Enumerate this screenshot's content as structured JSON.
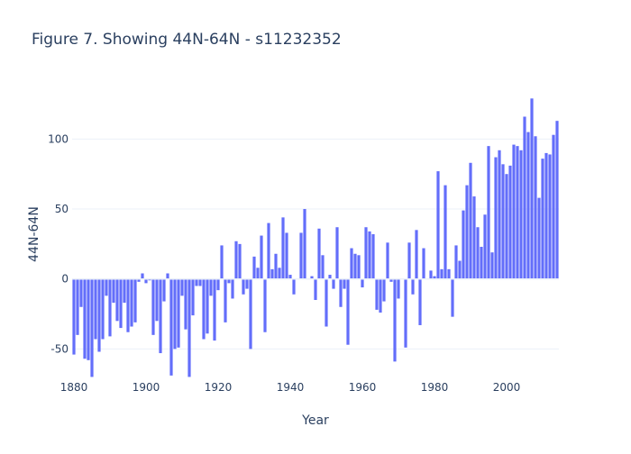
{
  "chart_data": {
    "type": "bar",
    "title": "Figure 7. Showing 44N-64N - s11232352",
    "xlabel": "Year",
    "ylabel": "44N-64N",
    "x_start": 1880,
    "x_end": 2014,
    "xticks": [
      1880,
      1900,
      1920,
      1940,
      1960,
      1980,
      2000
    ],
    "yticks": [
      -50,
      0,
      50,
      100
    ],
    "ylim": [
      -71,
      135
    ],
    "grid": true,
    "bar_color": "#636efa",
    "values": [
      -54,
      -40,
      -20,
      -57,
      -58,
      -70,
      -43,
      -52,
      -43,
      -12,
      -41,
      -17,
      -30,
      -35,
      -17,
      -38,
      -34,
      -31,
      -2,
      4,
      -3,
      -1,
      -40,
      -30,
      -53,
      -16,
      4,
      -69,
      -50,
      -49,
      -12,
      -36,
      -70,
      -26,
      -5,
      -5,
      -43,
      -39,
      -12,
      -44,
      -8,
      24,
      -31,
      -3,
      -14,
      27,
      25,
      -11,
      -7,
      -50,
      16,
      8,
      31,
      -38,
      40,
      7,
      18,
      8,
      44,
      33,
      3,
      -11,
      0,
      33,
      50,
      0,
      2,
      -15,
      36,
      17,
      -34,
      3,
      -7,
      37,
      -20,
      -7,
      -47,
      22,
      18,
      17,
      -6,
      37,
      34,
      32,
      -22,
      -24,
      -16,
      26,
      -2,
      -59,
      -14,
      0,
      -49,
      26,
      -11,
      35,
      -33,
      22,
      0,
      6,
      2,
      77,
      7,
      67,
      7,
      -27,
      24,
      13,
      49,
      67,
      83,
      59,
      37,
      23,
      46,
      95,
      19,
      87,
      92,
      82,
      75,
      81,
      96,
      95,
      92,
      116,
      105,
      129,
      102,
      58,
      86,
      90,
      89,
      103,
      113
    ]
  }
}
